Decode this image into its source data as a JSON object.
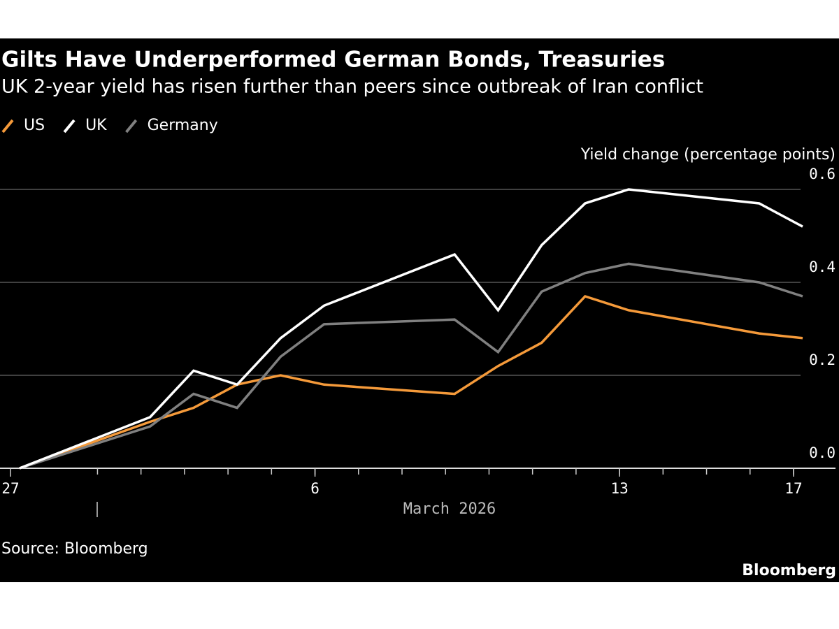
{
  "chart_data": {
    "type": "line",
    "title": "Gilts Have Underperformed German Bonds, Treasuries",
    "subtitle": "UK 2-year yield has risen further than peers since outbreak of Iran conflict",
    "y_axis_label": "Yield change (percentage points)",
    "x_axis_label": "March 2026",
    "source": "Source: Bloomberg",
    "brand": "Bloomberg",
    "x": [
      "2026-02-27",
      "2026-03-02",
      "2026-03-03",
      "2026-03-04",
      "2026-03-05",
      "2026-03-06",
      "2026-03-09",
      "2026-03-10",
      "2026-03-11",
      "2026-03-12",
      "2026-03-13",
      "2026-03-16",
      "2026-03-17"
    ],
    "series": [
      {
        "name": "US",
        "color": "#f59a3a",
        "values": [
          0,
          0.1,
          0.13,
          0.18,
          0.2,
          0.18,
          0.16,
          0.22,
          0.27,
          0.37,
          0.34,
          0.29,
          0.28
        ]
      },
      {
        "name": "UK",
        "color": "#ffffff",
        "values": [
          0,
          0.11,
          0.21,
          0.18,
          0.28,
          0.35,
          0.46,
          0.34,
          0.48,
          0.57,
          0.6,
          0.57,
          0.52
        ]
      },
      {
        "name": "Germany",
        "color": "#808080",
        "values": [
          0,
          0.09,
          0.16,
          0.13,
          0.24,
          0.31,
          0.32,
          0.25,
          0.38,
          0.42,
          0.44,
          0.4,
          0.37
        ]
      }
    ],
    "xlim": [
      "2026-02-27",
      "2026-03-17"
    ],
    "xticks": [
      {
        "value": "2026-02-27",
        "label": "27"
      },
      {
        "value": "2026-03-06",
        "label": "6"
      },
      {
        "value": "2026-03-13",
        "label": "13"
      },
      {
        "value": "2026-03-17",
        "label": "17"
      }
    ],
    "ylim": [
      0,
      0.6
    ],
    "yticks": [
      {
        "value": 0,
        "label": "0.0"
      },
      {
        "value": 0.2,
        "label": "0.2"
      },
      {
        "value": 0.4,
        "label": "0.4"
      },
      {
        "value": 0.6,
        "label": "0.6"
      }
    ],
    "grid": true
  }
}
